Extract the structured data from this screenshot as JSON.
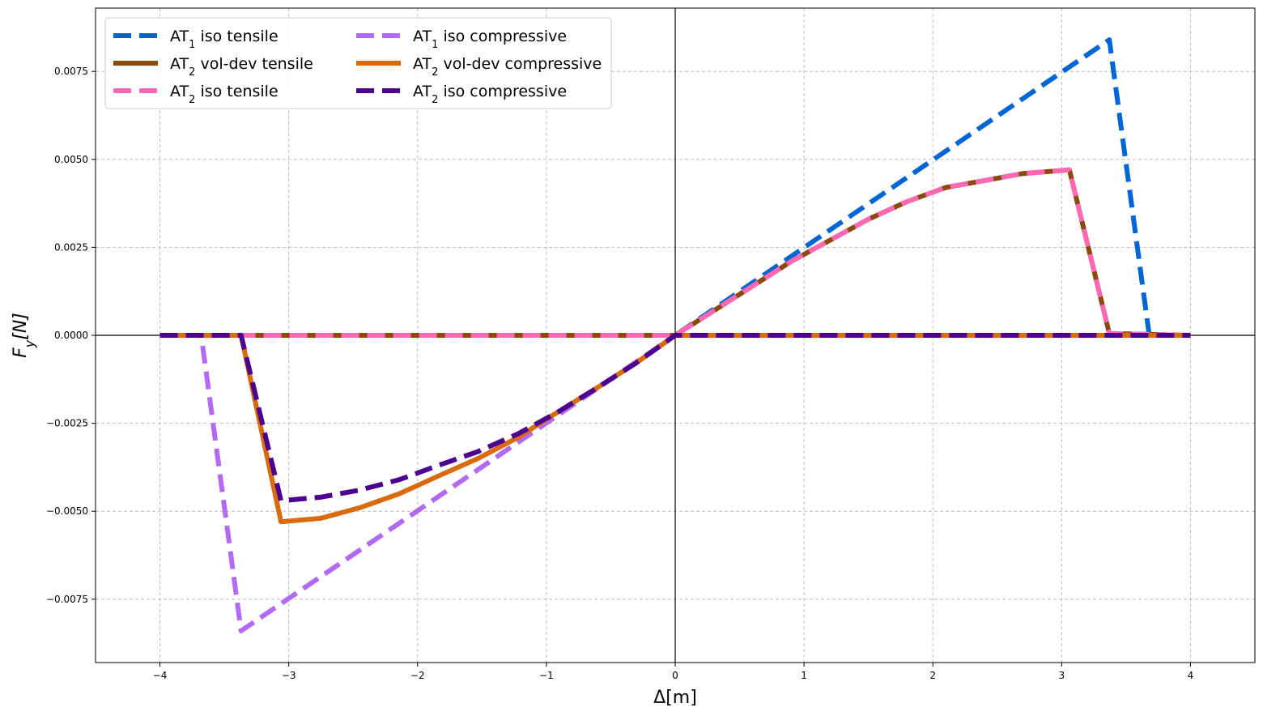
{
  "chart_data": {
    "type": "line",
    "title": "",
    "xlabel": "Δ[m]",
    "ylabel": "F_y[N]",
    "xlim": [
      -4.5,
      4.5
    ],
    "ylim": [
      -0.0093,
      0.0093
    ],
    "xticks": [
      -4,
      -3,
      -2,
      -1,
      0,
      1,
      2,
      3,
      4
    ],
    "xtick_labels": [
      "−4",
      "−3",
      "−2",
      "−1",
      "0",
      "1",
      "2",
      "3",
      "4"
    ],
    "yticks": [
      -0.0075,
      -0.005,
      -0.0025,
      0,
      0.0025,
      0.005,
      0.0075
    ],
    "ytick_labels": [
      "−0.0075",
      "−0.0050",
      "−0.0025",
      "0.0000",
      "0.0025",
      "0.0050",
      "0.0075"
    ],
    "grid": true,
    "legend_position": "upper-left",
    "legend_columns": 2,
    "series": [
      {
        "name": "AT1 iso tensile",
        "legend_main": "AT",
        "legend_sub": "1",
        "legend_rest": " iso tensile",
        "color": "#0066d6",
        "dashed": true,
        "x": [
          -4,
          -3.37,
          -3.06,
          0,
          3.37,
          3.68,
          4
        ],
        "y": [
          0,
          0,
          0,
          0,
          0.0084,
          0,
          0
        ]
      },
      {
        "name": "AT2 vol-dev tensile",
        "legend_main": "AT",
        "legend_sub": "2",
        "legend_rest": " vol-dev tensile",
        "color": "#8a4a0e",
        "dashed": false,
        "x": [
          -4,
          -3.06,
          0,
          0.3,
          0.6,
          0.9,
          1.2,
          1.5,
          1.8,
          2.1,
          2.4,
          2.7,
          3.06,
          3.37,
          4
        ],
        "y": [
          0,
          0,
          0,
          0.0007,
          0.0014,
          0.0021,
          0.0027,
          0.0033,
          0.0038,
          0.0042,
          0.0044,
          0.0046,
          0.0047,
          5e-05,
          0
        ]
      },
      {
        "name": "AT2 iso tensile",
        "legend_main": "AT",
        "legend_sub": "2",
        "legend_rest": " iso tensile",
        "color": "#ff69b4",
        "dashed": true,
        "x": [
          -4,
          -3.06,
          0,
          0.3,
          0.6,
          0.9,
          1.2,
          1.5,
          1.8,
          2.1,
          2.4,
          2.7,
          3.06,
          3.37,
          4
        ],
        "y": [
          0,
          0,
          0,
          0.0007,
          0.0014,
          0.0021,
          0.0027,
          0.0033,
          0.0038,
          0.0042,
          0.0044,
          0.0046,
          0.0047,
          5e-05,
          0
        ]
      },
      {
        "name": "AT1 iso compressive",
        "legend_main": "AT",
        "legend_sub": "1",
        "legend_rest": " iso compressive",
        "color": "#b36af2",
        "dashed": true,
        "x": [
          -4,
          -3.68,
          -3.37,
          0,
          4
        ],
        "y": [
          0,
          0,
          -0.0084,
          0,
          0
        ]
      },
      {
        "name": "AT2 vol-dev compressive",
        "legend_main": "AT",
        "legend_sub": "2",
        "legend_rest": " vol-dev compressive",
        "color": "#d96b0c",
        "dashed": false,
        "x": [
          -4,
          -3.37,
          -3.06,
          -2.75,
          -2.45,
          -2.14,
          -1.84,
          -1.53,
          -1.22,
          -0.92,
          -0.61,
          -0.31,
          0,
          4
        ],
        "y": [
          0,
          0,
          -0.0053,
          -0.0052,
          -0.0049,
          -0.0045,
          -0.004,
          -0.0035,
          -0.0029,
          -0.0022,
          -0.0015,
          -0.0008,
          0,
          0
        ]
      },
      {
        "name": "AT2 iso compressive",
        "legend_main": "AT",
        "legend_sub": "2",
        "legend_rest": " iso compressive",
        "color": "#4b0090",
        "dashed": true,
        "x": [
          -4,
          -3.37,
          -3.06,
          -2.75,
          -2.45,
          -2.14,
          -1.84,
          -1.53,
          -1.22,
          -0.92,
          -0.61,
          -0.31,
          0,
          4
        ],
        "y": [
          0,
          0,
          -0.0047,
          -0.0046,
          -0.0044,
          -0.0041,
          -0.0037,
          -0.0033,
          -0.0028,
          -0.0022,
          -0.0015,
          -0.0008,
          0,
          0
        ]
      }
    ]
  }
}
